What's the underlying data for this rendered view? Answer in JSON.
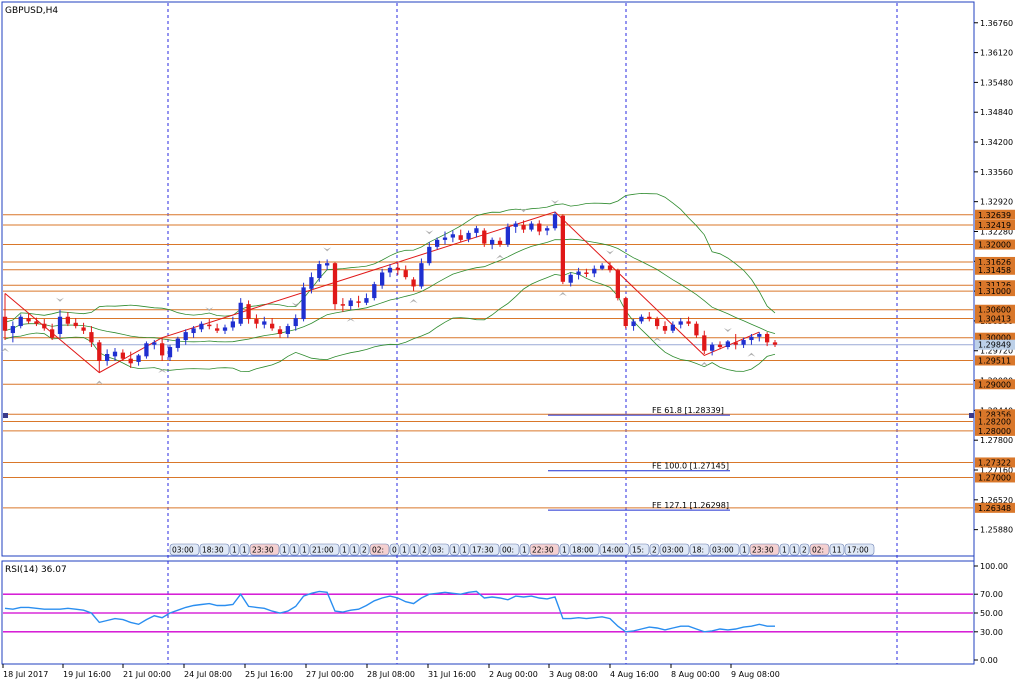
{
  "chart_header": {
    "symbol_timeframe": "GBPUSD,H4"
  },
  "rsi_header": {
    "label": "RSI(14) 36.07"
  },
  "colors": {
    "axis_blue": "#1f3fbf",
    "bull_candle": "#1f2fd0",
    "bear_candle": "#e01818",
    "level_line": "#d9772a",
    "level_label_bg": "#d9772a",
    "highlight_label_bg": "#bcd0e8",
    "band_green": "#2e8b2e",
    "zigzag_red": "#e01818",
    "rsi_line": "#2a8ef0",
    "rsi_level": "#d000d0",
    "fe_line": "#1f2fd0",
    "fractal": "#b0b0b0"
  },
  "price_axis": {
    "ticks": [
      "1.36760",
      "1.36120",
      "1.35480",
      "1.34840",
      "1.34200",
      "1.33560",
      "1.32920",
      "1.32280",
      "1.31640",
      "1.31000",
      "1.30360",
      "1.29720",
      "1.29080",
      "1.28440",
      "1.27800",
      "1.27160",
      "1.26520",
      "1.25880"
    ]
  },
  "level_labels": [
    {
      "text": "1.32639",
      "p": 1.32639,
      "highlight": false
    },
    {
      "text": "1.32419",
      "p": 1.32419,
      "highlight": false
    },
    {
      "text": "1.32000",
      "p": 1.32,
      "highlight": false
    },
    {
      "text": "1.31626",
      "p": 1.31626,
      "highlight": false
    },
    {
      "text": "1.31458",
      "p": 1.31458,
      "highlight": false
    },
    {
      "text": "1.31126",
      "p": 1.31126,
      "highlight": false
    },
    {
      "text": "1.31000",
      "p": 1.31,
      "highlight": false
    },
    {
      "text": "1.30600",
      "p": 1.306,
      "highlight": false
    },
    {
      "text": "1.30413",
      "p": 1.30413,
      "highlight": false
    },
    {
      "text": "1.30000",
      "p": 1.3,
      "highlight": false
    },
    {
      "text": "1.29849",
      "p": 1.29849,
      "highlight": true
    },
    {
      "text": "1.29511",
      "p": 1.29511,
      "highlight": false
    },
    {
      "text": "1.29000",
      "p": 1.29,
      "highlight": false
    },
    {
      "text": "1.28356",
      "p": 1.28356,
      "highlight": false
    },
    {
      "text": "1.28200",
      "p": 1.282,
      "highlight": false
    },
    {
      "text": "1.28000",
      "p": 1.28,
      "highlight": false
    },
    {
      "text": "1.27322",
      "p": 1.27322,
      "highlight": false
    },
    {
      "text": "1.27000",
      "p": 1.27,
      "highlight": false
    },
    {
      "text": "1.26348",
      "p": 1.26348,
      "highlight": false
    }
  ],
  "fe_labels": [
    {
      "text": "FE 61.8 [1.28339]",
      "p": 1.28339
    },
    {
      "text": "FE 100.0 [1.27145]",
      "p": 1.27145
    },
    {
      "text": "FE 127.1 [1.26298]",
      "p": 1.26298
    }
  ],
  "time_axis": {
    "labels": [
      "18 Jul 2017",
      "19 Jul 16:00",
      "21 Jul 00:00",
      "24 Jul 08:00",
      "25 Jul 16:00",
      "27 Jul 00:00",
      "28 Jul 08:00",
      "31 Jul 16:00",
      "2 Aug 00:00",
      "3 Aug 08:00",
      "4 Aug 16:00",
      "8 Aug 00:00",
      "9 Aug 08:00"
    ]
  },
  "session_labels": [
    "03:00",
    "18:30",
    "1",
    "1",
    "23:30",
    "1",
    "1",
    "1",
    "21:00",
    "1",
    "1",
    "2",
    "02:",
    "0",
    "1",
    "1",
    "2",
    "03:",
    "1",
    "1",
    "17:30",
    "00:",
    "1",
    "22:30",
    "1",
    "18:00",
    "14:00",
    "15:",
    "2",
    "03:00",
    "18:",
    "03:00",
    "1",
    "23:30",
    "1",
    "1",
    "2",
    "02:",
    "11",
    "17:00",
    "03:00",
    "22:30"
  ],
  "rsi_axis": {
    "ticks": [
      "100.00",
      "70.00",
      "50.00",
      "30.00",
      "0.00"
    ]
  },
  "chart_data": {
    "type": "candlestick",
    "title": "GBPUSD,H4",
    "ylim": [
      1.254,
      1.3712
    ],
    "candles": [
      [
        1.3045,
        1.3095,
        1.2995,
        1.3015
      ],
      [
        1.301,
        1.3035,
        1.299,
        1.3025
      ],
      [
        1.3025,
        1.305,
        1.302,
        1.3045
      ],
      [
        1.3042,
        1.3052,
        1.303,
        1.3035
      ],
      [
        1.3035,
        1.3043,
        1.3025,
        1.303
      ],
      [
        1.303,
        1.304,
        1.3015,
        1.302
      ],
      [
        1.3018,
        1.303,
        1.2995,
        1.3
      ],
      [
        1.3008,
        1.306,
        1.3,
        1.3045
      ],
      [
        1.3045,
        1.3055,
        1.3025,
        1.303
      ],
      [
        1.3032,
        1.3042,
        1.302,
        1.3025
      ],
      [
        1.3022,
        1.3032,
        1.3008,
        1.3015
      ],
      [
        1.3012,
        1.3025,
        1.298,
        1.299
      ],
      [
        1.299,
        1.2995,
        1.2925,
        1.295
      ],
      [
        1.295,
        1.2975,
        1.294,
        1.2965
      ],
      [
        1.296,
        1.2978,
        1.295,
        1.297
      ],
      [
        1.2968,
        1.2975,
        1.295,
        1.2955
      ],
      [
        1.2955,
        1.297,
        1.2935,
        1.2945
      ],
      [
        1.2948,
        1.2965,
        1.294,
        1.2962
      ],
      [
        1.296,
        1.2992,
        1.2955,
        1.2988
      ],
      [
        1.2985,
        1.2995,
        1.2975,
        1.299
      ],
      [
        1.2988,
        1.3,
        1.295,
        1.2962
      ],
      [
        1.2958,
        1.2985,
        1.295,
        1.298
      ],
      [
        1.2978,
        1.3002,
        1.297,
        1.2998
      ],
      [
        1.2995,
        1.3018,
        1.2985,
        1.3012
      ],
      [
        1.301,
        1.3025,
        1.3,
        1.302
      ],
      [
        1.3018,
        1.3035,
        1.3012,
        1.303
      ],
      [
        1.3028,
        1.304,
        1.3018,
        1.3025
      ],
      [
        1.302,
        1.303,
        1.301,
        1.3015
      ],
      [
        1.3015,
        1.3028,
        1.3008,
        1.3022
      ],
      [
        1.3022,
        1.3045,
        1.3015,
        1.3035
      ],
      [
        1.303,
        1.3085,
        1.3025,
        1.3075
      ],
      [
        1.3072,
        1.308,
        1.303,
        1.304
      ],
      [
        1.304,
        1.305,
        1.302,
        1.303
      ],
      [
        1.3028,
        1.3045,
        1.302,
        1.3035
      ],
      [
        1.303,
        1.3042,
        1.3015,
        1.302
      ],
      [
        1.3018,
        1.3025,
        1.3,
        1.3008
      ],
      [
        1.3008,
        1.303,
        1.3,
        1.3025
      ],
      [
        1.3025,
        1.305,
        1.3015,
        1.3042
      ],
      [
        1.304,
        1.3118,
        1.3035,
        1.3108
      ],
      [
        1.3105,
        1.314,
        1.3095,
        1.313
      ],
      [
        1.3128,
        1.3165,
        1.312,
        1.3158
      ],
      [
        1.3155,
        1.3168,
        1.3145,
        1.316
      ],
      [
        1.316,
        1.3162,
        1.306,
        1.3072
      ],
      [
        1.3072,
        1.3085,
        1.3055,
        1.307
      ],
      [
        1.3068,
        1.3085,
        1.306,
        1.308
      ],
      [
        1.3078,
        1.309,
        1.3065,
        1.3075
      ],
      [
        1.3075,
        1.3095,
        1.307,
        1.3085
      ],
      [
        1.3085,
        1.312,
        1.308,
        1.3115
      ],
      [
        1.3112,
        1.3148,
        1.3105,
        1.314
      ],
      [
        1.314,
        1.3158,
        1.313,
        1.315
      ],
      [
        1.315,
        1.316,
        1.3135,
        1.3145
      ],
      [
        1.3145,
        1.3155,
        1.3125,
        1.313
      ],
      [
        1.3125,
        1.313,
        1.31,
        1.311
      ],
      [
        1.311,
        1.317,
        1.3105,
        1.316
      ],
      [
        1.316,
        1.3205,
        1.3155,
        1.3195
      ],
      [
        1.3195,
        1.3215,
        1.319,
        1.321
      ],
      [
        1.321,
        1.3228,
        1.32,
        1.3215
      ],
      [
        1.3215,
        1.323,
        1.3205,
        1.3222
      ],
      [
        1.322,
        1.3232,
        1.3205,
        1.321
      ],
      [
        1.3212,
        1.323,
        1.3205,
        1.3225
      ],
      [
        1.3225,
        1.324,
        1.3215,
        1.3235
      ],
      [
        1.323,
        1.3235,
        1.3195,
        1.3202
      ],
      [
        1.32,
        1.3215,
        1.319,
        1.321
      ],
      [
        1.3208,
        1.3215,
        1.3195,
        1.32
      ],
      [
        1.32,
        1.3245,
        1.3195,
        1.3238
      ],
      [
        1.3238,
        1.325,
        1.3225,
        1.3245
      ],
      [
        1.3242,
        1.3252,
        1.3225,
        1.3232
      ],
      [
        1.3232,
        1.325,
        1.3228,
        1.3245
      ],
      [
        1.3245,
        1.3252,
        1.322,
        1.3228
      ],
      [
        1.323,
        1.324,
        1.322,
        1.3235
      ],
      [
        1.3235,
        1.327,
        1.323,
        1.3265
      ],
      [
        1.3262,
        1.3265,
        1.3115,
        1.312
      ],
      [
        1.3118,
        1.314,
        1.311,
        1.3135
      ],
      [
        1.3135,
        1.315,
        1.3125,
        1.3142
      ],
      [
        1.314,
        1.3148,
        1.313,
        1.3138
      ],
      [
        1.3138,
        1.3155,
        1.313,
        1.3148
      ],
      [
        1.3148,
        1.316,
        1.3145,
        1.3155
      ],
      [
        1.3155,
        1.3162,
        1.314,
        1.3145
      ],
      [
        1.3145,
        1.3148,
        1.308,
        1.3085
      ],
      [
        1.3085,
        1.3088,
        1.302,
        1.3025
      ],
      [
        1.3025,
        1.304,
        1.3015,
        1.3035
      ],
      [
        1.3035,
        1.305,
        1.303,
        1.3045
      ],
      [
        1.3045,
        1.3055,
        1.3035,
        1.304
      ],
      [
        1.304,
        1.3045,
        1.3018,
        1.3025
      ],
      [
        1.3025,
        1.3035,
        1.3008,
        1.3015
      ],
      [
        1.3015,
        1.3035,
        1.301,
        1.3028
      ],
      [
        1.3028,
        1.3042,
        1.302,
        1.3035
      ],
      [
        1.3035,
        1.3045,
        1.3025,
        1.303
      ],
      [
        1.303,
        1.3035,
        1.3,
        1.3005
      ],
      [
        1.3005,
        1.3015,
        1.2965,
        1.2972
      ],
      [
        1.2972,
        1.299,
        1.2962,
        1.2985
      ],
      [
        1.2985,
        1.2992,
        1.2975,
        1.298
      ],
      [
        1.298,
        1.2995,
        1.2975,
        1.2992
      ],
      [
        1.299,
        1.3008,
        1.2975,
        1.2985
      ],
      [
        1.2985,
        1.3,
        1.2978,
        1.2995
      ],
      [
        1.2995,
        1.3008,
        1.2985,
        1.3002
      ],
      [
        1.3002,
        1.3012,
        1.2992,
        1.3008
      ],
      [
        1.3008,
        1.3012,
        1.2982,
        1.299
      ],
      [
        1.299,
        1.2995,
        1.298,
        1.2985
      ]
    ],
    "rsi": {
      "values": [
        55,
        54,
        56,
        56,
        55,
        54,
        54,
        54,
        55,
        54,
        53,
        50,
        40,
        42,
        44,
        43,
        40,
        38,
        43,
        47,
        45,
        50,
        53,
        56,
        58,
        59,
        60,
        58,
        58,
        59,
        70,
        57,
        56,
        55,
        52,
        50,
        52,
        57,
        68,
        71,
        73,
        72,
        52,
        51,
        53,
        54,
        58,
        63,
        66,
        68,
        66,
        62,
        60,
        66,
        70,
        71,
        72,
        71,
        70,
        72,
        73,
        66,
        67,
        66,
        64,
        68,
        67,
        68,
        66,
        65,
        67,
        44,
        44,
        45,
        44,
        45,
        46,
        44,
        36,
        30,
        31,
        33,
        35,
        34,
        32,
        34,
        36,
        36,
        33,
        30,
        31,
        33,
        32,
        33,
        35,
        36,
        38,
        36,
        36
      ],
      "levels": [
        70,
        50,
        30
      ],
      "ylim": [
        0,
        100
      ]
    },
    "fe_levels": [
      {
        "name": "FE 61.8",
        "value": 1.28339
      },
      {
        "name": "FE 100.0",
        "value": 1.27145
      },
      {
        "name": "FE 127.1",
        "value": 1.26298
      }
    ]
  }
}
